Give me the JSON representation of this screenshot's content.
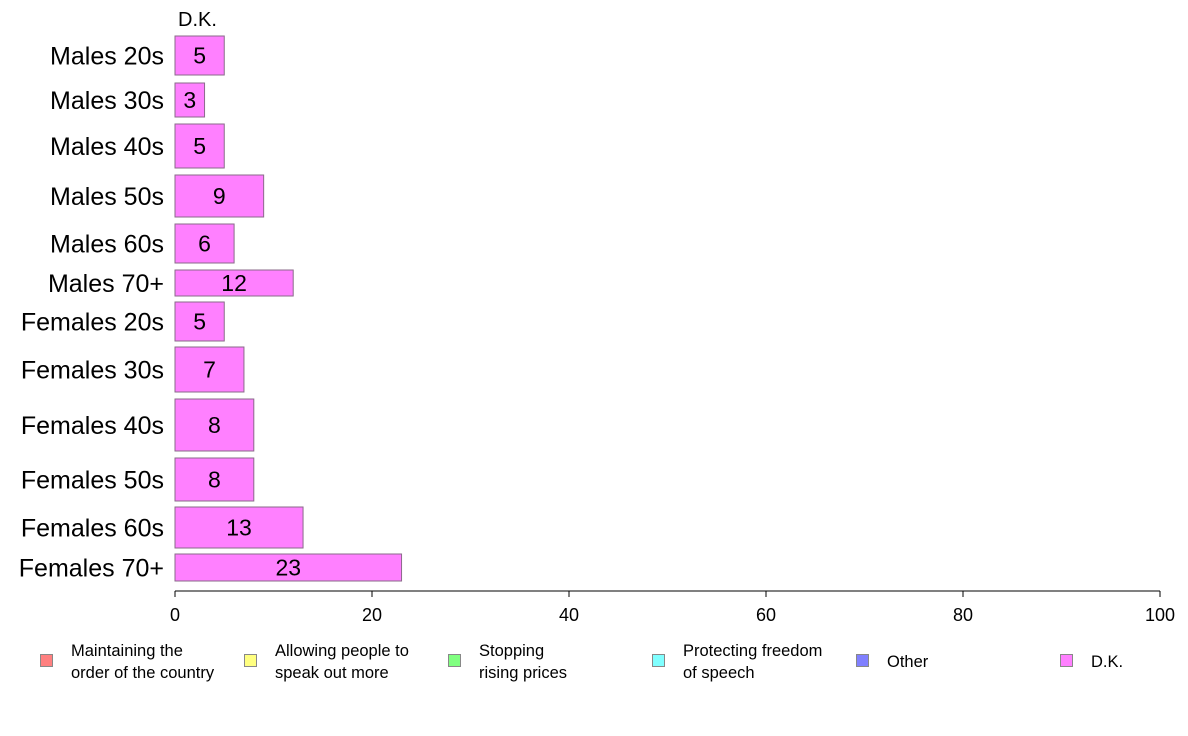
{
  "chart_data": {
    "type": "bar",
    "orientation": "horizontal",
    "stacked": true,
    "column_header": "D.K.",
    "categories": [
      "Males 20s",
      "Males 30s",
      "Males 40s",
      "Males 50s",
      "Males 60s",
      "Males 70+",
      "Females 20s",
      "Females 30s",
      "Females 40s",
      "Females 50s",
      "Females 60s",
      "Females 70+"
    ],
    "series": [
      {
        "name": "D.K.",
        "color": "#ff80ff",
        "values": [
          5,
          3,
          5,
          9,
          6,
          12,
          5,
          7,
          8,
          8,
          13,
          23
        ]
      }
    ],
    "xlim": [
      0,
      100
    ],
    "xticks": [
      "0",
      "20",
      "40",
      "60",
      "80",
      "100"
    ],
    "grid": false,
    "legend_position": "bottom"
  },
  "legend": [
    {
      "label": "Maintaining the\norder of the country",
      "color": "#ff8080"
    },
    {
      "label": "Allowing people to\nspeak out more",
      "color": "#ffff80"
    },
    {
      "label": "Stopping\nrising prices",
      "color": "#80ff80"
    },
    {
      "label": "Protecting freedom\nof speech",
      "color": "#80ffff"
    },
    {
      "label": "Other",
      "color": "#8080ff"
    },
    {
      "label": "D.K.",
      "color": "#ff80ff"
    }
  ]
}
